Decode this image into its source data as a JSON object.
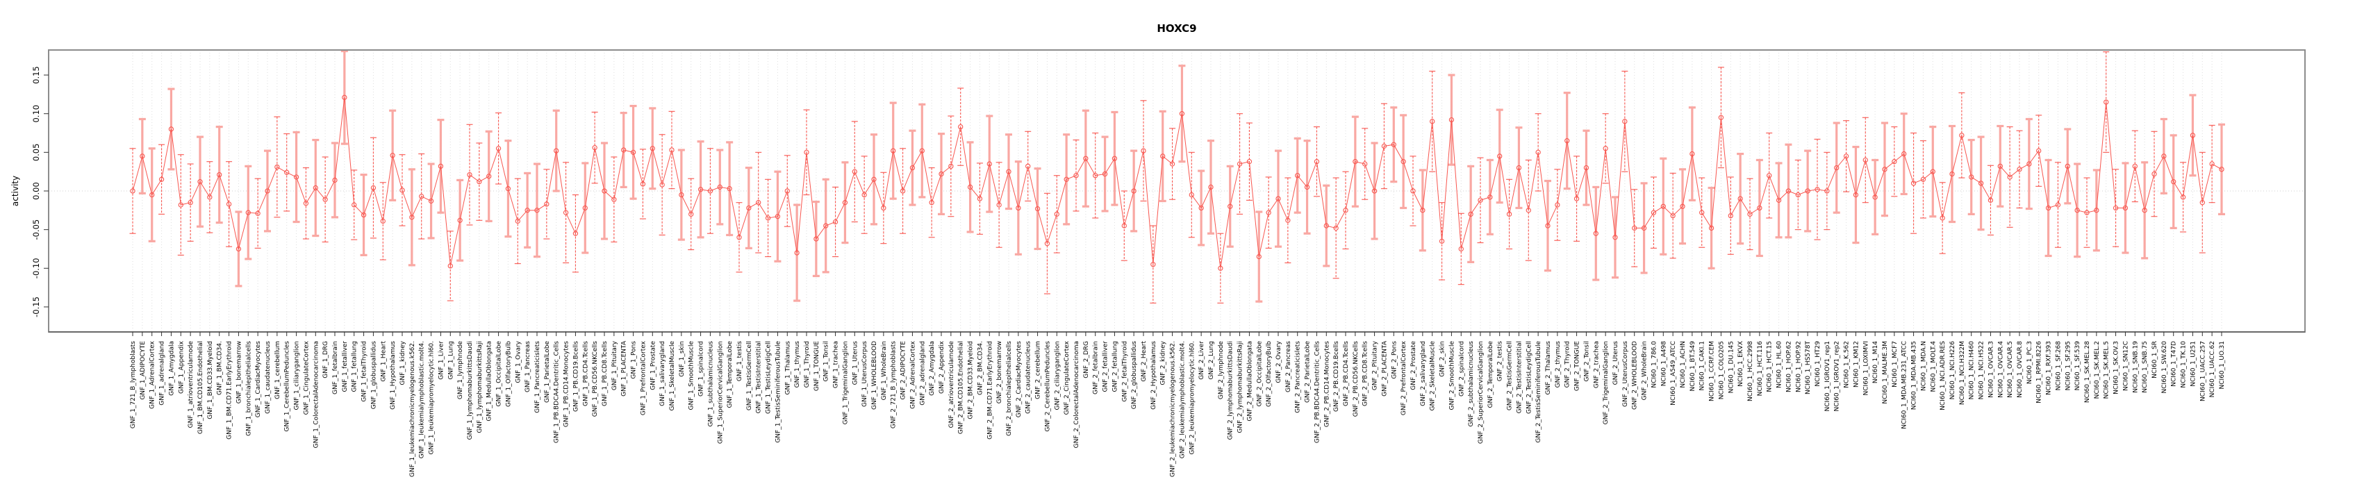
{
  "chart_data": {
    "type": "line",
    "title": "HOXC9",
    "ylabel": "activity",
    "xlabel": "",
    "ylim": [
      -0.182,
      0.182
    ],
    "yticks": [
      "0.15",
      "0.10",
      "0.05",
      "0.00",
      "-0.05",
      "-0.10",
      "-0.15"
    ],
    "ytick_values": [
      0.15,
      0.1,
      0.05,
      0.0,
      -0.05,
      -0.1,
      -0.15
    ],
    "grid": "vertical-dotted-per-sample, dotted-zero-line",
    "legend": "none",
    "marker": "open-circle",
    "colors": {
      "main": "#F8564F",
      "light_error": "#F9A8A3",
      "grid": "#DEDEDE",
      "zero_line": "#CFCFCF",
      "border": "#8C8C8C",
      "text": "#000000"
    },
    "categories": [
      "GNF_1_721_B_lymphoblasts",
      "GNF_1_ADIPOCYTE",
      "GNF_1_AdrenalCortex",
      "GNF_1_adrenalgland",
      "GNF_1_Amygdala",
      "GNF_1_Appendix",
      "GNF_1_atrioventricularnode",
      "GNF_1_BM.CD105.Endothelial",
      "GNF_1_BM.CD33.Myeloid",
      "GNF_1_BM.CD34.",
      "GNF_1_BM.CD71.EarlyErythroid",
      "GNF_1_bonemarrow",
      "GNF_1_bronchialepithelialcells",
      "GNF_1_CardiacMyocytes",
      "GNF_1_caudatenucleus",
      "GNF_1_cerebellum",
      "GNF_1_CerebellumPeduncles",
      "GNF_1_ciliaryganglion",
      "GNF_1_CingulateCortex",
      "GNF_1_ColorectalAdenocarcinoma",
      "GNF_1_DRG",
      "GNF_1_fetalbrain",
      "GNF_1_fetalliver",
      "GNF_1_fetallung",
      "GNF_1_fetalThyroid",
      "GNF_1_globuspallidus",
      "GNF_1_Heart",
      "GNF_1_Hypothalamus",
      "GNF_1_kidney",
      "GNF_1_leukemiachronicmyelogenous.k562.",
      "GNF_1_leukemialymphoblastic.molt4.",
      "GNF_1_leukemiapromyelocytic.hl60.",
      "GNF_1_Liver",
      "GNF_1_Lung",
      "GNF_1_lymphnode",
      "GNF_1_lymphomaburkittsDaudi",
      "GNF_1_lymphomaburkittsRaji",
      "GNF_1_MedullaOblongata",
      "GNF_1_OccipitalLobe",
      "GNF_1_OlfactoryBulb",
      "GNF_1_Ovary",
      "GNF_1_Pancreas",
      "GNF_1_Pancreaticislets",
      "GNF_1_ParietalLobe",
      "GNF_1_PB.BDCA4.Dentritic_Cells",
      "GNF_1_PB.CD14.Monocytes",
      "GNF_1_PB.CD19.Bcells",
      "GNF_1_PB.CD4.Tcells",
      "GNF_1_PB.CD56.NKCells",
      "GNF_1_PB.CD8.Tcells",
      "GNF_1_Pituitary",
      "GNF_1_PLACENTA",
      "GNF_1_Pons",
      "GNF_1_PrefrontalCortex",
      "GNF_1_Prostate",
      "GNF_1_salivarygland",
      "GNF_1_SkeletalMuscle",
      "GNF_1_skin",
      "GNF_1_SmoothMuscle",
      "GNF_1_spinalcord",
      "GNF_1_subthalamicnucleus",
      "GNF_1_SuperiorCervicalGanglion",
      "GNF_1_TemporalLobe",
      "GNF_1_testis",
      "GNF_1_TestisGermCell",
      "GNF_1_TestisInterstitial",
      "GNF_1_TestisLeydigCell",
      "GNF_1_TestisSeminiferousTubule",
      "GNF_1_Thalamus",
      "GNF_1_thymus",
      "GNF_1_Thyroid",
      "GNF_1_TONGUE",
      "GNF_1_Tonsil",
      "GNF_1_trachea",
      "GNF_1_TrigeminalGanglion",
      "GNF_1_Uterus",
      "GNF_1_UterusCorpus",
      "GNF_1_WHOLEBLOOD",
      "GNF_1_WholeBrain",
      "GNF_2_721_B_lymphoblasts",
      "GNF_2_ADIPOCYTE",
      "GNF_2_AdrenalCortex",
      "GNF_2_adrenalgland",
      "GNF_2_Amygdala",
      "GNF_2_Appendix",
      "GNF_2_atrioventricularnode",
      "GNF_2_BM.CD105.Endothelial",
      "GNF_2_BM.CD33.Myeloid",
      "GNF_2_BM.CD34.",
      "GNF_2_BM.CD71.EarlyErythroid",
      "GNF_2_bonemarrow",
      "GNF_2_bronchialepithelialcells",
      "GNF_2_CardiacMyocytes",
      "GNF_2_caudatenucleus",
      "GNF_2_cerebellum",
      "GNF_2_CerebellumPeduncles",
      "GNF_2_ciliaryganglion",
      "GNF_2_CingulateCortex",
      "GNF_2_ColorectalAdenocarcinoma",
      "GNF_2_DRG",
      "GNF_2_fetalbrain",
      "GNF_2_fetalliver",
      "GNF_2_fetallung",
      "GNF_2_fetalThyroid",
      "GNF_2_globuspallidus",
      "GNF_2_Heart",
      "GNF_2_Hypothalamus",
      "GNF_2_kidney",
      "GNF_2_leukemiachronicmyelogenous.k562.",
      "GNF_2_leukemialymphoblastic.molt4.",
      "GNF_2_leukemiapromyelocytic.hl60.",
      "GNF_2_Liver",
      "GNF_2_Lung",
      "GNF_2_lymphnode",
      "GNF_2_lymphomaburkittsDaudi",
      "GNF_2_lymphomaburkittsRaji",
      "GNF_2_MedullaOblongata",
      "GNF_2_OccipitalLobe",
      "GNF_2_OlfactoryBulb",
      "GNF_2_Ovary",
      "GNF_2_Pancreas",
      "GNF_2_Pancreaticislets",
      "GNF_2_ParietalLobe",
      "GNF_2_PB.BDCA4.Dentritic_Cells",
      "GNF_2_PB.CD14.Monocytes",
      "GNF_2_PB.CD19.Bcells",
      "GNF_2_PB.CD4.Tcells",
      "GNF_2_PB.CD56.NKCells",
      "GNF_2_PB.CD8.Tcells",
      "GNF_2_Pituitary",
      "GNF_2_PLACENTA",
      "GNF_2_Pons",
      "GNF_2_PrefrontalCortex",
      "GNF_2_Prostate",
      "GNF_2_salivarygland",
      "GNF_2_SkeletalMuscle",
      "GNF_2_skin",
      "GNF_2_SmoothMuscle",
      "GNF_2_spinalcord",
      "GNF_2_subthalamicnucleus",
      "GNF_2_SuperiorCervicalGanglion",
      "GNF_2_TemporalLobe",
      "GNF_2_testis",
      "GNF_2_TestisGermCell",
      "GNF_2_TestisInterstitial",
      "GNF_2_TestisLeydigCell",
      "GNF_2_TestisSeminiferousTubule",
      "GNF_2_Thalamus",
      "GNF_2_thymus",
      "GNF_2_Thyroid",
      "GNF_2_TONGUE",
      "GNF_2_Tonsil",
      "GNF_2_trachea",
      "GNF_2_TrigeminalGanglion",
      "GNF_2_Uterus",
      "GNF_2_UterusCorpus",
      "GNF_2_WHOLEBLOOD",
      "GNF_2_WholeBrain",
      "NCI60_1_786.0",
      "NCI60_1_A498",
      "NCI60_1_A549_ATCC",
      "NCI60_1_ACHN",
      "NCI60_1_BT.549",
      "NCI60_1_CAKI.1",
      "NCI60_1_CCRF.CEM",
      "NCI60_1_COLO205",
      "NCI60_1_DU.145",
      "NCI60_1_EKVX",
      "NCI60_1_HCC.2998",
      "NCI60_1_HCT.116",
      "NCI60_1_HCT.15",
      "NCI60_1_HL.60",
      "NCI60_1_HOP.62",
      "NCI60_1_HOP.92",
      "NCI60_1_HS578T",
      "NCI60_1_HT29",
      "NCI60_1_IGROV1_rep1",
      "NCI60_1_IGROV1_rep2",
      "NCI60_1_K.562",
      "NCI60_1_KM12",
      "NCI60_1_LOXIMVI",
      "NCI60_1_M14",
      "NCI60_1_MALME.3M",
      "NCI60_1_MCF7",
      "NCI60_1_MDA.MB.231_ATCC",
      "NCI60_1_MDA.MB.435",
      "NCI60_1_MDA.N",
      "NCI60_1_MOLT.4",
      "NCI60_1_NCI.ADR.RES",
      "NCI60_1_NCI.H226",
      "NCI60_1_NCI.H322M",
      "NCI60_1_NCI.H460",
      "NCI60_1_NCI.H522",
      "NCI60_1_OVCAR.3",
      "NCI60_1_OVCAR.4",
      "NCI60_1_OVCAR.5",
      "NCI60_1_OVCAR.8",
      "NCI60_1_PC.3",
      "NCI60_1_RPMI.8226",
      "NCI60_1_RXF.393",
      "NCI60_1_SF.268",
      "NCI60_1_SF.295",
      "NCI60_1_SF.539",
      "NCI60_1_SK.MEL.28",
      "NCI60_1_SK.MEL.2",
      "NCI60_1_SK.MEL.5",
      "NCI60_1_SK.OV.3",
      "NCI60_1_SN12C",
      "NCI60_1_SNB.19",
      "NCI60_1_SNB.75",
      "NCI60_1_SR",
      "NCI60_1_SW.620",
      "NCI60_1_T47D",
      "NCI60_1_TK.10",
      "NCI60_1_U251",
      "NCI60_1_UACC.257",
      "NCI60_1_UACC.62",
      "NCI60_1_UO.31"
    ],
    "values": [
      0.0,
      0.045,
      -0.005,
      0.015,
      0.08,
      -0.018,
      -0.015,
      0.012,
      -0.008,
      0.021,
      -0.017,
      -0.075,
      -0.028,
      -0.029,
      0.0,
      0.031,
      0.024,
      0.018,
      -0.016,
      0.004,
      -0.011,
      0.014,
      0.121,
      -0.018,
      -0.031,
      0.004,
      -0.039,
      0.046,
      0.001,
      -0.034,
      -0.007,
      -0.013,
      0.032,
      -0.097,
      -0.038,
      0.021,
      0.012,
      0.019,
      0.055,
      0.003,
      -0.039,
      -0.025,
      -0.025,
      -0.017,
      0.052,
      -0.028,
      -0.055,
      -0.022,
      0.056,
      0.0,
      -0.011,
      0.053,
      0.05,
      0.009,
      0.055,
      0.008,
      0.053,
      -0.005,
      -0.03,
      0.002,
      0.0,
      0.005,
      0.003,
      -0.06,
      -0.022,
      -0.015,
      -0.035,
      -0.033,
      0.0,
      -0.08,
      0.05,
      -0.062,
      -0.045,
      -0.04,
      -0.015,
      0.025,
      -0.005,
      0.015,
      -0.022,
      0.052,
      0.0,
      0.03,
      0.052,
      -0.015,
      0.022,
      0.032,
      0.083,
      0.005,
      -0.01,
      0.035,
      -0.018,
      0.025,
      -0.022,
      0.032,
      -0.023,
      -0.068,
      -0.03,
      0.015,
      0.02,
      0.042,
      0.02,
      0.022,
      0.042,
      -0.045,
      0.0,
      0.052,
      -0.095,
      0.045,
      0.035,
      0.1,
      -0.005,
      -0.022,
      0.005,
      -0.1,
      -0.02,
      0.035,
      0.038,
      -0.085,
      -0.028,
      -0.01,
      -0.038,
      0.02,
      0.005,
      0.038,
      -0.045,
      -0.048,
      -0.025,
      0.038,
      0.035,
      0.0,
      0.058,
      0.06,
      0.038,
      0.0,
      -0.025,
      0.09,
      -0.065,
      0.092,
      -0.075,
      -0.03,
      -0.012,
      -0.008,
      0.045,
      -0.03,
      0.03,
      -0.025,
      0.05,
      -0.045,
      -0.018,
      0.065,
      -0.01,
      0.03,
      -0.055,
      0.055,
      -0.06,
      0.09,
      -0.048,
      -0.048,
      -0.028,
      -0.02,
      -0.032,
      -0.02,
      0.048,
      -0.028,
      -0.048,
      0.095,
      -0.032,
      -0.01,
      -0.03,
      -0.022,
      0.02,
      -0.012,
      0.0,
      -0.005,
      0.0,
      0.002,
      0.0,
      0.03,
      0.045,
      -0.005,
      0.04,
      -0.008,
      0.028,
      0.038,
      0.048,
      0.01,
      0.015,
      0.025,
      -0.035,
      0.022,
      0.072,
      0.018,
      0.01,
      -0.012,
      0.032,
      0.018,
      0.028,
      0.035,
      0.052,
      -0.022,
      -0.018,
      0.032,
      -0.025,
      -0.028,
      -0.025,
      0.115,
      -0.022,
      -0.022,
      0.032,
      -0.025,
      0.022,
      0.045,
      0.012,
      -0.008,
      0.072,
      -0.015,
      0.035,
      0.028
    ],
    "errors": [
      0.055,
      0.048,
      0.06,
      0.045,
      0.052,
      0.065,
      0.05,
      0.058,
      0.046,
      0.062,
      0.055,
      0.048,
      0.06,
      0.045,
      0.052,
      0.065,
      0.05,
      0.058,
      0.046,
      0.062,
      0.055,
      0.048,
      0.06,
      0.045,
      0.052,
      0.065,
      0.05,
      0.058,
      0.046,
      0.062,
      0.055,
      0.048,
      0.06,
      0.045,
      0.052,
      0.065,
      0.05,
      0.058,
      0.046,
      0.062,
      0.055,
      0.048,
      0.06,
      0.045,
      0.052,
      0.065,
      0.05,
      0.058,
      0.046,
      0.062,
      0.055,
      0.048,
      0.06,
      0.045,
      0.052,
      0.065,
      0.05,
      0.058,
      0.046,
      0.062,
      0.055,
      0.048,
      0.06,
      0.045,
      0.052,
      0.065,
      0.05,
      0.058,
      0.046,
      0.062,
      0.055,
      0.048,
      0.06,
      0.045,
      0.052,
      0.065,
      0.05,
      0.058,
      0.046,
      0.062,
      0.055,
      0.048,
      0.06,
      0.045,
      0.052,
      0.065,
      0.05,
      0.058,
      0.046,
      0.062,
      0.055,
      0.048,
      0.06,
      0.045,
      0.052,
      0.065,
      0.05,
      0.058,
      0.046,
      0.062,
      0.055,
      0.048,
      0.06,
      0.045,
      0.052,
      0.065,
      0.05,
      0.058,
      0.046,
      0.062,
      0.055,
      0.048,
      0.06,
      0.045,
      0.052,
      0.065,
      0.05,
      0.058,
      0.046,
      0.062,
      0.055,
      0.048,
      0.06,
      0.045,
      0.052,
      0.065,
      0.05,
      0.058,
      0.046,
      0.062,
      0.055,
      0.048,
      0.06,
      0.045,
      0.052,
      0.065,
      0.05,
      0.058,
      0.046,
      0.062,
      0.055,
      0.048,
      0.06,
      0.045,
      0.052,
      0.065,
      0.05,
      0.058,
      0.046,
      0.062,
      0.055,
      0.048,
      0.06,
      0.045,
      0.052,
      0.065,
      0.05,
      0.058,
      0.046,
      0.062,
      0.055,
      0.048,
      0.06,
      0.045,
      0.052,
      0.065,
      0.05,
      0.058,
      0.046,
      0.062,
      0.055,
      0.048,
      0.06,
      0.045,
      0.052,
      0.065,
      0.05,
      0.058,
      0.046,
      0.062,
      0.055,
      0.048,
      0.06,
      0.045,
      0.052,
      0.065,
      0.05,
      0.058,
      0.046,
      0.062,
      0.055,
      0.048,
      0.06,
      0.045,
      0.052,
      0.065,
      0.05,
      0.058,
      0.046,
      0.062,
      0.055,
      0.048,
      0.06,
      0.045,
      0.052,
      0.065,
      0.05,
      0.058,
      0.046,
      0.062,
      0.055,
      0.048,
      0.06,
      0.045,
      0.052,
      0.065,
      0.05,
      0.058
    ],
    "thick_bar": [
      0,
      1,
      1,
      0,
      1,
      0,
      0,
      1,
      0,
      1,
      0,
      1,
      1,
      0,
      1,
      0,
      0,
      1,
      0,
      1,
      0,
      1,
      1,
      0,
      1,
      0,
      0,
      1,
      0,
      1,
      0,
      1,
      1,
      0,
      1,
      0,
      0,
      1,
      0,
      1,
      0,
      1,
      1,
      0,
      1,
      0,
      0,
      1,
      0,
      1,
      0,
      1,
      1,
      0,
      1,
      0,
      0,
      1,
      0,
      1,
      0,
      1,
      1,
      0,
      1,
      0,
      0,
      1,
      0,
      1,
      0,
      1,
      1,
      0,
      1,
      0,
      0,
      1,
      0,
      1,
      0,
      1,
      1,
      0,
      1,
      0,
      0,
      1,
      0,
      1,
      0,
      1,
      1,
      0,
      1,
      0,
      0,
      1,
      0,
      1,
      0,
      1,
      1,
      0,
      1,
      0,
      0,
      1,
      0,
      1,
      0,
      1,
      1,
      0,
      1,
      0,
      0,
      1,
      0,
      1,
      0,
      1,
      1,
      0,
      1,
      0,
      0,
      1,
      0,
      1,
      0,
      1,
      1,
      0,
      1,
      0,
      0,
      1,
      0,
      1,
      0,
      1,
      1,
      0,
      1,
      0,
      0,
      1,
      0,
      1,
      0,
      1,
      1,
      0,
      1,
      0,
      0,
      1,
      0,
      1,
      0,
      1,
      1,
      0,
      1,
      0,
      0,
      1,
      0,
      1,
      0,
      1,
      1,
      0,
      1,
      0,
      0,
      1,
      0,
      1,
      0,
      1,
      1,
      0,
      1,
      0,
      0,
      1,
      0,
      1,
      0,
      1,
      1,
      0,
      1,
      0,
      0,
      1,
      0,
      1,
      0,
      1,
      1,
      0,
      1,
      0,
      0,
      1,
      0,
      1,
      0,
      1,
      1,
      0,
      1,
      0,
      0,
      1
    ]
  }
}
